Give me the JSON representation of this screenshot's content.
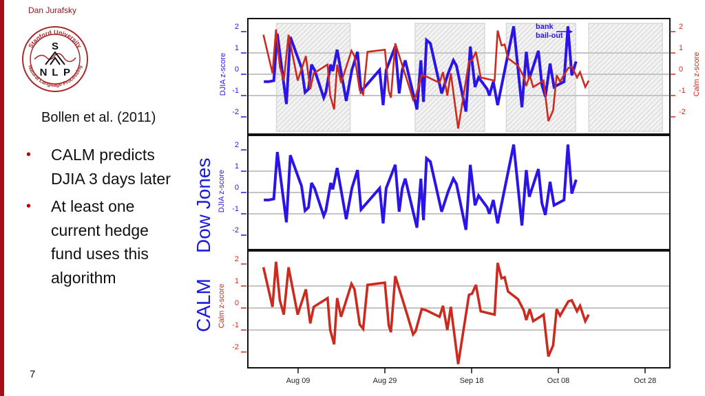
{
  "slide": {
    "author": "Dan Jurafsky",
    "logo": {
      "top_text": "Stanford University",
      "bottom_text": "Natural Language Processing",
      "letters": [
        "S",
        "N",
        "L",
        "P"
      ]
    },
    "citation": "Bollen et al. (2011)",
    "bullets": [
      "CALM predicts DJIA 3 days later",
      "At least one current hedge fund uses this algorithm"
    ],
    "side_labels": {
      "dow": "Dow Jones",
      "calm": "CALM"
    },
    "page_number": "7",
    "colors": {
      "djia": "#2a14e6",
      "calm": "#cc2a1e",
      "accent": "#a50f15",
      "side_label": "#1a1adc"
    }
  },
  "chart_data": [
    {
      "type": "line",
      "title": "DJIA vs Calm z-scores (overlay)",
      "x_unit": "days since Aug 09",
      "xticks": [
        {
          "label": "Aug 09",
          "x": 0
        },
        {
          "label": "Aug 29",
          "x": 20
        },
        {
          "label": "Sep 18",
          "x": 40
        },
        {
          "label": "Oct 08",
          "x": 60
        },
        {
          "label": "Oct 28",
          "x": 80
        }
      ],
      "ylabel_left": "DJIA z-score",
      "ylabel_right": "Calm z-score",
      "yticks": [
        -2,
        -1,
        0,
        1,
        2
      ],
      "ylim": [
        -2.6,
        2.6
      ],
      "grid": "horizontal at -1, 0, 1",
      "shaded_periods": [
        [
          -5,
          12
        ],
        [
          27,
          43
        ],
        [
          48,
          64
        ],
        [
          67,
          84
        ]
      ],
      "annotation": {
        "text_line1": "bank",
        "text_line2": "bail-out",
        "arrow": "right"
      },
      "series_ref": [
        "djia",
        "calm"
      ]
    },
    {
      "type": "line",
      "title": "Dow Jones",
      "ylabel": "DJIA z-score",
      "yticks": [
        -2,
        -1,
        0,
        1,
        2
      ],
      "ylim": [
        -2.6,
        2.6
      ],
      "series_ref": [
        "djia"
      ]
    },
    {
      "type": "line",
      "title": "CALM",
      "ylabel": "Calm z-score",
      "yticks": [
        -2,
        -1,
        0,
        1,
        2
      ],
      "ylim": [
        -2.6,
        2.6
      ],
      "xticks": [
        {
          "label": "Aug 09",
          "x": 0
        },
        {
          "label": "Aug 29",
          "x": 20
        },
        {
          "label": "Sep 18",
          "x": 40
        },
        {
          "label": "Oct 08",
          "x": 60
        },
        {
          "label": "Oct 28",
          "x": 80
        }
      ],
      "series_ref": [
        "calm"
      ]
    }
  ],
  "series": {
    "djia": {
      "name": "DJIA z-score",
      "points": [
        [
          -7.9,
          -0.35
        ],
        [
          -6.8,
          -0.35
        ],
        [
          -5.6,
          -0.3
        ],
        [
          -4.8,
          1.9
        ],
        [
          -2.7,
          -1.4
        ],
        [
          -1.8,
          1.75
        ],
        [
          0.8,
          0.3
        ],
        [
          1.6,
          -0.85
        ],
        [
          2.4,
          -0.7
        ],
        [
          3.1,
          0.45
        ],
        [
          3.8,
          0.2
        ],
        [
          5.9,
          -1.1
        ],
        [
          6.4,
          -0.85
        ],
        [
          7.5,
          0.45
        ],
        [
          8.0,
          0.15
        ],
        [
          9.0,
          1.15
        ],
        [
          11.1,
          -1.25
        ],
        [
          12.4,
          0.2
        ],
        [
          13.7,
          1.05
        ],
        [
          14.5,
          -0.8
        ],
        [
          18.8,
          0.2
        ],
        [
          19.6,
          -1.45
        ],
        [
          20.3,
          0.2
        ],
        [
          22.4,
          1.3
        ],
        [
          23.3,
          -0.9
        ],
        [
          24.0,
          0.2
        ],
        [
          24.7,
          0.65
        ],
        [
          27.4,
          -1.65
        ],
        [
          28.3,
          0.65
        ],
        [
          28.9,
          -1.3
        ],
        [
          29.6,
          1.6
        ],
        [
          30.5,
          1.45
        ],
        [
          33.1,
          -0.9
        ],
        [
          34.6,
          0.05
        ],
        [
          35.8,
          0.65
        ],
        [
          36.5,
          0.4
        ],
        [
          38.7,
          -1.75
        ],
        [
          39.7,
          1.3
        ],
        [
          40.8,
          -0.6
        ],
        [
          41.6,
          -0.15
        ],
        [
          43.6,
          -0.7
        ],
        [
          44.1,
          -1.0
        ],
        [
          45.0,
          -0.35
        ],
        [
          46.0,
          -1.45
        ],
        [
          49.7,
          2.25
        ],
        [
          51.6,
          -1.55
        ],
        [
          52.6,
          1.05
        ],
        [
          53.3,
          -0.2
        ],
        [
          55.4,
          1.1
        ],
        [
          56.2,
          -0.5
        ],
        [
          57.0,
          -1.05
        ],
        [
          58.1,
          0.5
        ],
        [
          59.0,
          -0.6
        ],
        [
          61.3,
          -0.35
        ],
        [
          62.2,
          2.25
        ],
        [
          63.1,
          -0.05
        ],
        [
          64.1,
          0.6
        ]
      ]
    },
    "calm": {
      "name": "Calm z-score",
      "points": [
        [
          -8.0,
          1.85
        ],
        [
          -5.9,
          0.05
        ],
        [
          -5.1,
          2.1
        ],
        [
          -4.2,
          0.35
        ],
        [
          -3.3,
          -0.3
        ],
        [
          -2.2,
          1.85
        ],
        [
          -0.1,
          -0.3
        ],
        [
          1.8,
          0.85
        ],
        [
          2.8,
          -0.7
        ],
        [
          3.6,
          0.05
        ],
        [
          6.8,
          0.45
        ],
        [
          7.4,
          -1.0
        ],
        [
          8.3,
          -1.65
        ],
        [
          9.0,
          0.45
        ],
        [
          9.9,
          -0.4
        ],
        [
          12.3,
          1.1
        ],
        [
          13.0,
          0.85
        ],
        [
          14.2,
          -0.75
        ],
        [
          15.0,
          -0.95
        ],
        [
          16.0,
          1.05
        ],
        [
          20.0,
          1.15
        ],
        [
          20.9,
          -0.8
        ],
        [
          21.4,
          -1.1
        ],
        [
          22.4,
          1.45
        ],
        [
          25.3,
          -0.4
        ],
        [
          26.5,
          -1.2
        ],
        [
          27.1,
          -1.05
        ],
        [
          28.5,
          -0.05
        ],
        [
          29.5,
          -0.1
        ],
        [
          32.6,
          -0.4
        ],
        [
          33.4,
          0.1
        ],
        [
          34.4,
          -1.0
        ],
        [
          35.2,
          0.05
        ],
        [
          36.9,
          -2.55
        ],
        [
          39.4,
          0.6
        ],
        [
          40.1,
          0.65
        ],
        [
          41.0,
          1.05
        ],
        [
          42.1,
          -0.15
        ],
        [
          45.3,
          -0.3
        ],
        [
          46.0,
          2.05
        ],
        [
          46.9,
          1.35
        ],
        [
          47.6,
          1.4
        ],
        [
          48.4,
          0.75
        ],
        [
          50.7,
          0.4
        ],
        [
          52.0,
          -0.1
        ],
        [
          52.6,
          -0.55
        ],
        [
          53.4,
          -0.05
        ],
        [
          54.2,
          -0.6
        ],
        [
          56.6,
          -0.3
        ],
        [
          57.7,
          -2.2
        ],
        [
          58.8,
          -1.7
        ],
        [
          59.6,
          -0.05
        ],
        [
          60.4,
          -0.35
        ],
        [
          62.3,
          0.3
        ],
        [
          63.1,
          0.35
        ],
        [
          64.3,
          -0.15
        ],
        [
          65.0,
          0.1
        ],
        [
          66.2,
          -0.6
        ],
        [
          67.0,
          -0.3
        ]
      ]
    }
  }
}
